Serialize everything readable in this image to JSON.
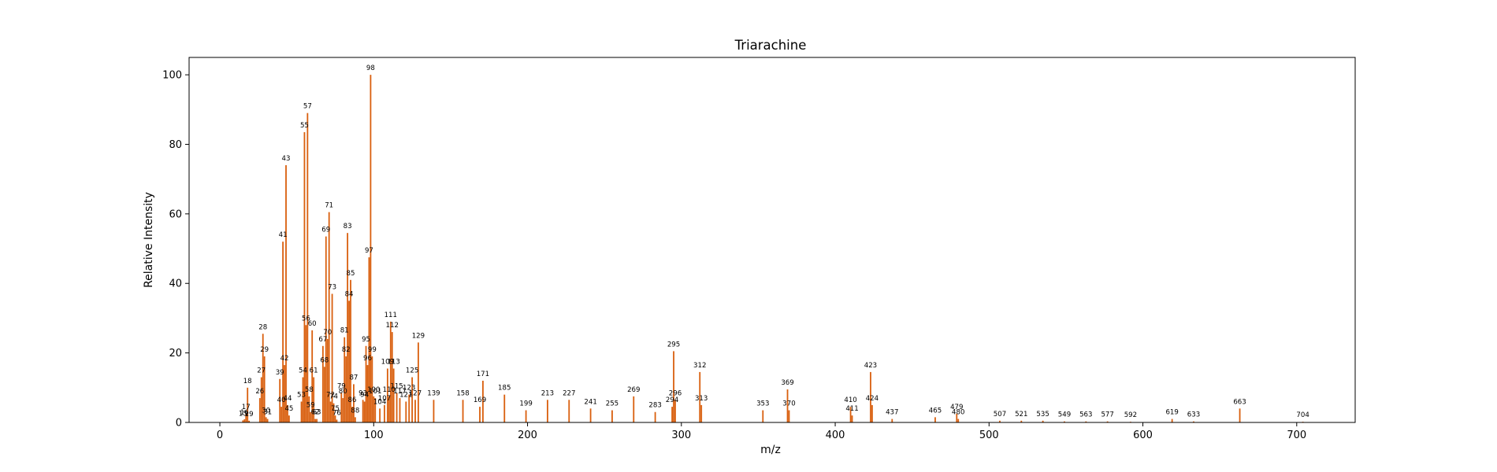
{
  "chart_data": {
    "type": "bar",
    "title": "Triarachine",
    "xlabel": "m/z",
    "ylabel": "Relative Intensity",
    "xlim": [
      -20,
      738
    ],
    "ylim": [
      0,
      105
    ],
    "xticks": [
      0,
      100,
      200,
      300,
      400,
      500,
      600,
      700
    ],
    "yticks": [
      0,
      20,
      40,
      60,
      80,
      100
    ],
    "grid": false,
    "bar_color": "#d95f0e",
    "peaks": [
      {
        "mz": 15,
        "intensity": 0.6,
        "label": "15"
      },
      {
        "mz": 16,
        "intensity": 0.9,
        "label": "16"
      },
      {
        "mz": 17,
        "intensity": 2.5,
        "label": "17"
      },
      {
        "mz": 18,
        "intensity": 10.0,
        "label": "18"
      },
      {
        "mz": 19,
        "intensity": 0.5,
        "label": "19"
      },
      {
        "mz": 26,
        "intensity": 7.0,
        "label": "26"
      },
      {
        "mz": 27,
        "intensity": 13.0,
        "label": "27"
      },
      {
        "mz": 28,
        "intensity": 25.5,
        "label": "28"
      },
      {
        "mz": 29,
        "intensity": 19.0,
        "label": "29"
      },
      {
        "mz": 30,
        "intensity": 1.5,
        "label": "30"
      },
      {
        "mz": 31,
        "intensity": 1.0,
        "label": "31"
      },
      {
        "mz": 39,
        "intensity": 12.5,
        "label": "39"
      },
      {
        "mz": 40,
        "intensity": 4.5,
        "label": "40"
      },
      {
        "mz": 41,
        "intensity": 52.0,
        "label": "41"
      },
      {
        "mz": 42,
        "intensity": 16.5,
        "label": "42"
      },
      {
        "mz": 43,
        "intensity": 74.0,
        "label": "43"
      },
      {
        "mz": 44,
        "intensity": 5.0,
        "label": "44"
      },
      {
        "mz": 45,
        "intensity": 2.0,
        "label": "45"
      },
      {
        "mz": 53,
        "intensity": 6.0,
        "label": "53"
      },
      {
        "mz": 54,
        "intensity": 13.0,
        "label": "54"
      },
      {
        "mz": 55,
        "intensity": 83.5,
        "label": "55"
      },
      {
        "mz": 56,
        "intensity": 28.0,
        "label": "56"
      },
      {
        "mz": 57,
        "intensity": 89.0,
        "label": "57"
      },
      {
        "mz": 58,
        "intensity": 7.5,
        "label": "58"
      },
      {
        "mz": 59,
        "intensity": 3.0,
        "label": "59"
      },
      {
        "mz": 60,
        "intensity": 26.5,
        "label": "60"
      },
      {
        "mz": 61,
        "intensity": 13.0,
        "label": "61"
      },
      {
        "mz": 62,
        "intensity": 1.0,
        "label": "62"
      },
      {
        "mz": 63,
        "intensity": 1.0,
        "label": "63"
      },
      {
        "mz": 67,
        "intensity": 22.0,
        "label": "67"
      },
      {
        "mz": 68,
        "intensity": 16.0,
        "label": "68"
      },
      {
        "mz": 69,
        "intensity": 53.5,
        "label": "69"
      },
      {
        "mz": 70,
        "intensity": 24.0,
        "label": "70"
      },
      {
        "mz": 71,
        "intensity": 60.5,
        "label": "71"
      },
      {
        "mz": 72,
        "intensity": 6.0,
        "label": "72"
      },
      {
        "mz": 73,
        "intensity": 37.0,
        "label": "73"
      },
      {
        "mz": 74,
        "intensity": 5.5,
        "label": "74"
      },
      {
        "mz": 75,
        "intensity": 2.0,
        "label": "75"
      },
      {
        "mz": 76,
        "intensity": 0.8,
        "label": "76"
      },
      {
        "mz": 79,
        "intensity": 8.5,
        "label": "79"
      },
      {
        "mz": 80,
        "intensity": 7.0,
        "label": "80"
      },
      {
        "mz": 81,
        "intensity": 24.5,
        "label": "81"
      },
      {
        "mz": 82,
        "intensity": 19.0,
        "label": "82"
      },
      {
        "mz": 83,
        "intensity": 54.5,
        "label": "83"
      },
      {
        "mz": 84,
        "intensity": 35.0,
        "label": "84"
      },
      {
        "mz": 85,
        "intensity": 41.0,
        "label": "85"
      },
      {
        "mz": 86,
        "intensity": 4.5,
        "label": "86"
      },
      {
        "mz": 87,
        "intensity": 11.0,
        "label": "87"
      },
      {
        "mz": 88,
        "intensity": 1.5,
        "label": "88"
      },
      {
        "mz": 93,
        "intensity": 6.5,
        "label": "93"
      },
      {
        "mz": 94,
        "intensity": 6.0,
        "label": "94"
      },
      {
        "mz": 95,
        "intensity": 22.0,
        "label": "95"
      },
      {
        "mz": 96,
        "intensity": 16.5,
        "label": "96"
      },
      {
        "mz": 97,
        "intensity": 47.5,
        "label": "97"
      },
      {
        "mz": 98,
        "intensity": 100.0,
        "label": "98"
      },
      {
        "mz": 99,
        "intensity": 19.0,
        "label": "99"
      },
      {
        "mz": 100,
        "intensity": 7.5,
        "label": "100"
      },
      {
        "mz": 101,
        "intensity": 7.0,
        "label": "101"
      },
      {
        "mz": 104,
        "intensity": 4.0,
        "label": "104"
      },
      {
        "mz": 107,
        "intensity": 5.0,
        "label": "107"
      },
      {
        "mz": 109,
        "intensity": 15.5,
        "label": "109"
      },
      {
        "mz": 110,
        "intensity": 7.5,
        "label": "110"
      },
      {
        "mz": 111,
        "intensity": 29.0,
        "label": "111"
      },
      {
        "mz": 112,
        "intensity": 26.0,
        "label": "112"
      },
      {
        "mz": 113,
        "intensity": 15.5,
        "label": "113"
      },
      {
        "mz": 115,
        "intensity": 8.5,
        "label": "115"
      },
      {
        "mz": 117,
        "intensity": 7.0,
        "label": "117"
      },
      {
        "mz": 121,
        "intensity": 6.0,
        "label": "121"
      },
      {
        "mz": 123,
        "intensity": 8.0,
        "label": "123"
      },
      {
        "mz": 125,
        "intensity": 13.0,
        "label": "125"
      },
      {
        "mz": 127,
        "intensity": 6.5,
        "label": "127"
      },
      {
        "mz": 129,
        "intensity": 23.0,
        "label": "129"
      },
      {
        "mz": 139,
        "intensity": 6.5,
        "label": "139"
      },
      {
        "mz": 158,
        "intensity": 6.5,
        "label": "158"
      },
      {
        "mz": 169,
        "intensity": 4.5,
        "label": "169"
      },
      {
        "mz": 171,
        "intensity": 12.0,
        "label": "171"
      },
      {
        "mz": 185,
        "intensity": 8.0,
        "label": "185"
      },
      {
        "mz": 199,
        "intensity": 3.5,
        "label": "199"
      },
      {
        "mz": 213,
        "intensity": 6.5,
        "label": "213"
      },
      {
        "mz": 227,
        "intensity": 6.5,
        "label": "227"
      },
      {
        "mz": 241,
        "intensity": 4.0,
        "label": "241"
      },
      {
        "mz": 255,
        "intensity": 3.5,
        "label": "255"
      },
      {
        "mz": 269,
        "intensity": 7.5,
        "label": "269"
      },
      {
        "mz": 283,
        "intensity": 3.0,
        "label": "283"
      },
      {
        "mz": 294,
        "intensity": 4.5,
        "label": "294"
      },
      {
        "mz": 295,
        "intensity": 20.5,
        "label": "295"
      },
      {
        "mz": 296,
        "intensity": 6.5,
        "label": "296"
      },
      {
        "mz": 312,
        "intensity": 14.5,
        "label": "312"
      },
      {
        "mz": 313,
        "intensity": 5.0,
        "label": "313"
      },
      {
        "mz": 353,
        "intensity": 3.5,
        "label": "353"
      },
      {
        "mz": 369,
        "intensity": 9.5,
        "label": "369"
      },
      {
        "mz": 370,
        "intensity": 3.5,
        "label": "370"
      },
      {
        "mz": 410,
        "intensity": 4.5,
        "label": "410"
      },
      {
        "mz": 411,
        "intensity": 2.0,
        "label": "411"
      },
      {
        "mz": 423,
        "intensity": 14.5,
        "label": "423"
      },
      {
        "mz": 424,
        "intensity": 5.0,
        "label": "424"
      },
      {
        "mz": 437,
        "intensity": 1.0,
        "label": "437"
      },
      {
        "mz": 465,
        "intensity": 1.5,
        "label": "465"
      },
      {
        "mz": 479,
        "intensity": 2.5,
        "label": "479"
      },
      {
        "mz": 480,
        "intensity": 1.0,
        "label": "480"
      },
      {
        "mz": 507,
        "intensity": 0.5,
        "label": "507"
      },
      {
        "mz": 521,
        "intensity": 0.5,
        "label": "521"
      },
      {
        "mz": 535,
        "intensity": 0.5,
        "label": "535"
      },
      {
        "mz": 549,
        "intensity": 0.3,
        "label": "549"
      },
      {
        "mz": 563,
        "intensity": 0.3,
        "label": "563"
      },
      {
        "mz": 577,
        "intensity": 0.3,
        "label": "577"
      },
      {
        "mz": 592,
        "intensity": 0.2,
        "label": "592"
      },
      {
        "mz": 619,
        "intensity": 1.0,
        "label": "619"
      },
      {
        "mz": 633,
        "intensity": 0.3,
        "label": "633"
      },
      {
        "mz": 663,
        "intensity": 4.0,
        "label": "663"
      },
      {
        "mz": 704,
        "intensity": 0.2,
        "label": "704"
      }
    ]
  }
}
